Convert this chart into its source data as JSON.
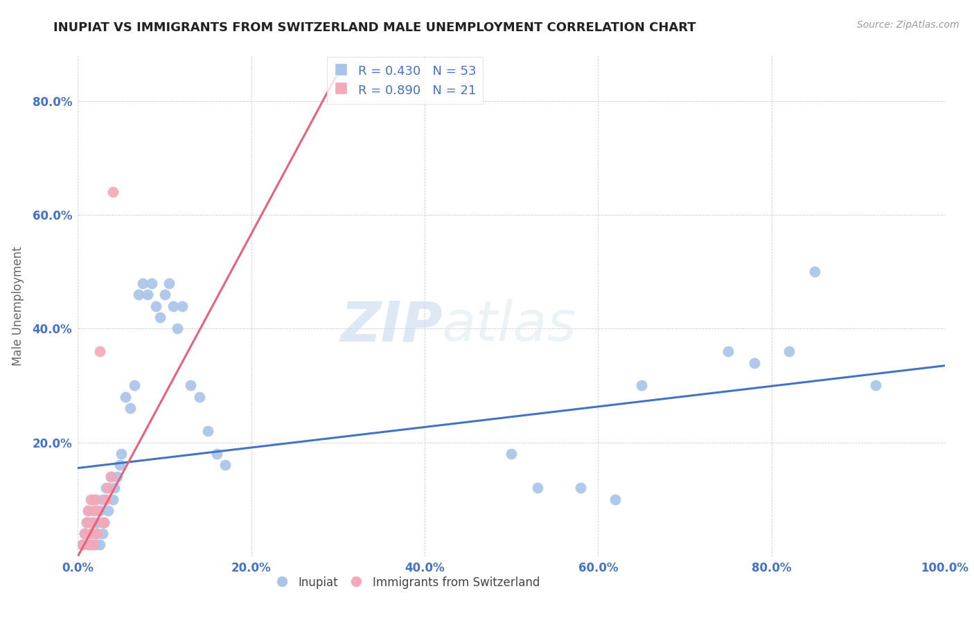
{
  "title": "INUPIAT VS IMMIGRANTS FROM SWITZERLAND MALE UNEMPLOYMENT CORRELATION CHART",
  "source": "Source: ZipAtlas.com",
  "ylabel": "Male Unemployment",
  "xlim": [
    0.0,
    1.0
  ],
  "ylim": [
    0.0,
    0.88
  ],
  "xtick_labels": [
    "0.0%",
    "20.0%",
    "40.0%",
    "60.0%",
    "80.0%",
    "100.0%"
  ],
  "xtick_vals": [
    0.0,
    0.2,
    0.4,
    0.6,
    0.8,
    1.0
  ],
  "ytick_labels": [
    "20.0%",
    "40.0%",
    "60.0%",
    "80.0%"
  ],
  "ytick_vals": [
    0.2,
    0.4,
    0.6,
    0.8
  ],
  "inupiat_color": "#a8c4e8",
  "swiss_color": "#f4a8b8",
  "inupiat_line_color": "#4472c4",
  "swiss_line_color": "#e8607a",
  "r_inupiat": 0.43,
  "n_inupiat": 53,
  "r_swiss": 0.89,
  "n_swiss": 21,
  "background_color": "#ffffff",
  "grid_color": "#cccccc",
  "watermark_zip": "ZIP",
  "watermark_atlas": "atlas",
  "inupiat_x": [
    0.005,
    0.008,
    0.01,
    0.012,
    0.015,
    0.015,
    0.018,
    0.018,
    0.02,
    0.022,
    0.022,
    0.025,
    0.025,
    0.028,
    0.028,
    0.03,
    0.032,
    0.035,
    0.038,
    0.04,
    0.042,
    0.045,
    0.048,
    0.05,
    0.055,
    0.06,
    0.065,
    0.07,
    0.075,
    0.08,
    0.085,
    0.09,
    0.095,
    0.1,
    0.105,
    0.11,
    0.115,
    0.12,
    0.13,
    0.14,
    0.15,
    0.16,
    0.17,
    0.5,
    0.53,
    0.58,
    0.62,
    0.65,
    0.75,
    0.78,
    0.82,
    0.85,
    0.92
  ],
  "inupiat_y": [
    0.02,
    0.04,
    0.06,
    0.08,
    0.02,
    0.04,
    0.06,
    0.1,
    0.02,
    0.04,
    0.06,
    0.02,
    0.08,
    0.04,
    0.1,
    0.06,
    0.12,
    0.08,
    0.14,
    0.1,
    0.12,
    0.14,
    0.16,
    0.18,
    0.28,
    0.26,
    0.3,
    0.46,
    0.48,
    0.46,
    0.48,
    0.44,
    0.42,
    0.46,
    0.48,
    0.44,
    0.4,
    0.44,
    0.3,
    0.28,
    0.22,
    0.18,
    0.16,
    0.18,
    0.12,
    0.12,
    0.1,
    0.3,
    0.36,
    0.34,
    0.36,
    0.5,
    0.3
  ],
  "swiss_x": [
    0.005,
    0.008,
    0.01,
    0.012,
    0.012,
    0.015,
    0.015,
    0.015,
    0.018,
    0.018,
    0.02,
    0.02,
    0.022,
    0.022,
    0.025,
    0.028,
    0.03,
    0.032,
    0.035,
    0.038,
    0.04
  ],
  "swiss_y": [
    0.02,
    0.04,
    0.06,
    0.02,
    0.08,
    0.04,
    0.06,
    0.1,
    0.02,
    0.08,
    0.04,
    0.1,
    0.04,
    0.08,
    0.36,
    0.06,
    0.06,
    0.1,
    0.12,
    0.14,
    0.64
  ],
  "blue_line_x0": 0.0,
  "blue_line_y0": 0.155,
  "blue_line_x1": 1.0,
  "blue_line_y1": 0.335,
  "pink_line_x0": 0.0,
  "pink_line_y0": 0.0,
  "pink_line_x1": 0.3,
  "pink_line_y1": 0.85
}
